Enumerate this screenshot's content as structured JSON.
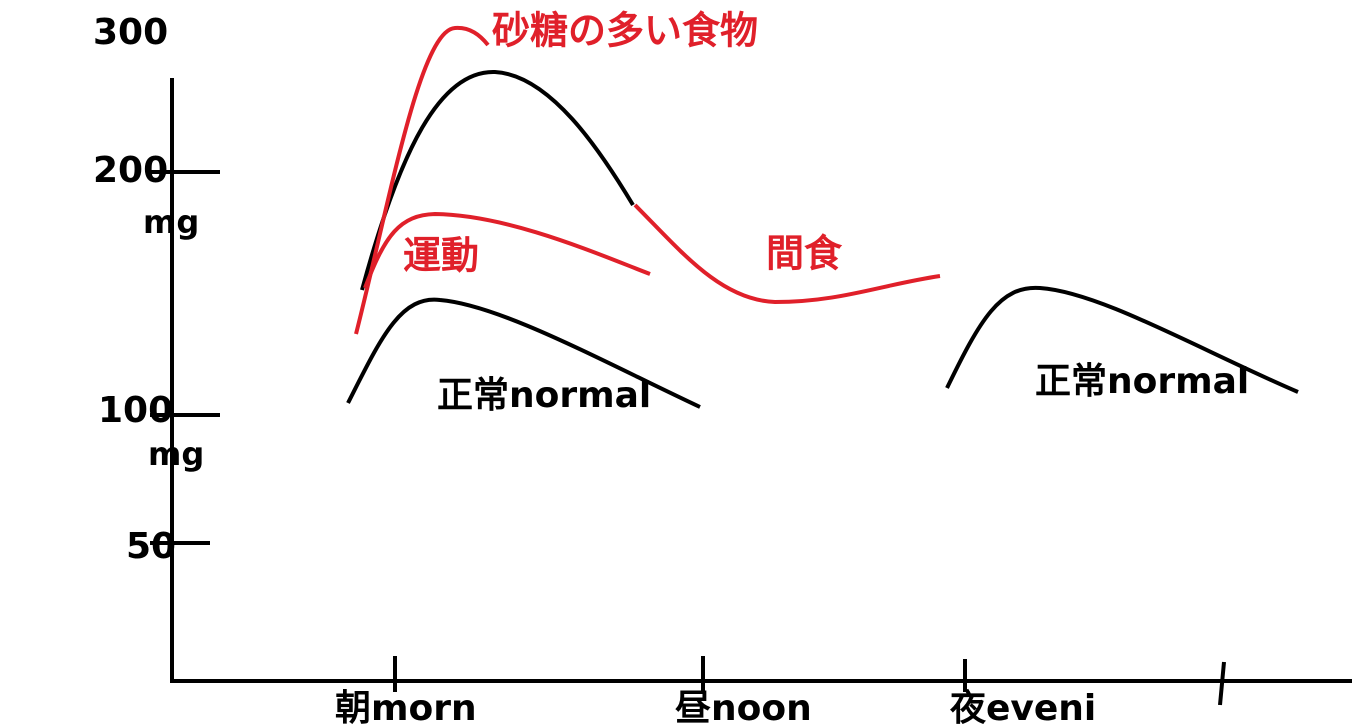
{
  "y_axis": {
    "labels": [
      "300",
      "200",
      "mg",
      "100",
      "mg",
      "50"
    ]
  },
  "x_axis": {
    "labels": [
      "朝morn",
      "昼noon",
      "夜eveni"
    ]
  },
  "curve_labels": {
    "sugar": "砂糖の多い食物",
    "exercise": "運動",
    "snack": "間食",
    "normal_morning": "正常normal",
    "normal_evening": "正常normal"
  }
}
